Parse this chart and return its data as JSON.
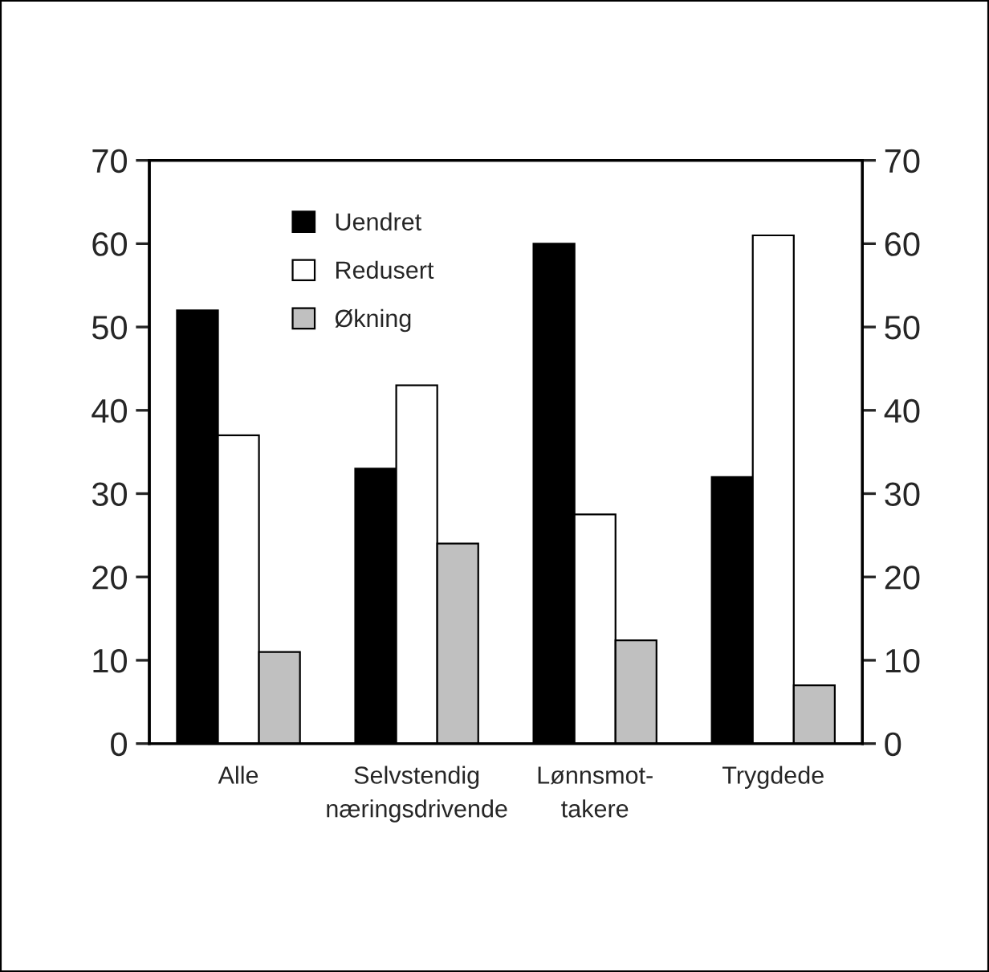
{
  "chart_data": {
    "type": "bar",
    "categories": [
      "Alle",
      "Selvstendig\nnæringsdrivende",
      "Lønnsmot-\ntakere",
      "Trygdede"
    ],
    "series": [
      {
        "name": "Uendret",
        "color": "#000000",
        "values": [
          52,
          33,
          60,
          32
        ]
      },
      {
        "name": "Redusert",
        "color": "#ffffff",
        "values": [
          37,
          43,
          27.5,
          61
        ]
      },
      {
        "name": "Økning",
        "color": "#c0c0c0",
        "values": [
          11,
          24,
          12.4,
          7
        ]
      }
    ],
    "ylim": [
      0,
      70
    ],
    "yticks": [
      0,
      10,
      20,
      30,
      40,
      50,
      60,
      70
    ],
    "y2lim": [
      0,
      70
    ],
    "y2ticks": [
      0,
      10,
      20,
      30,
      40,
      50,
      60,
      70
    ],
    "legend": "top left",
    "grid": false
  }
}
